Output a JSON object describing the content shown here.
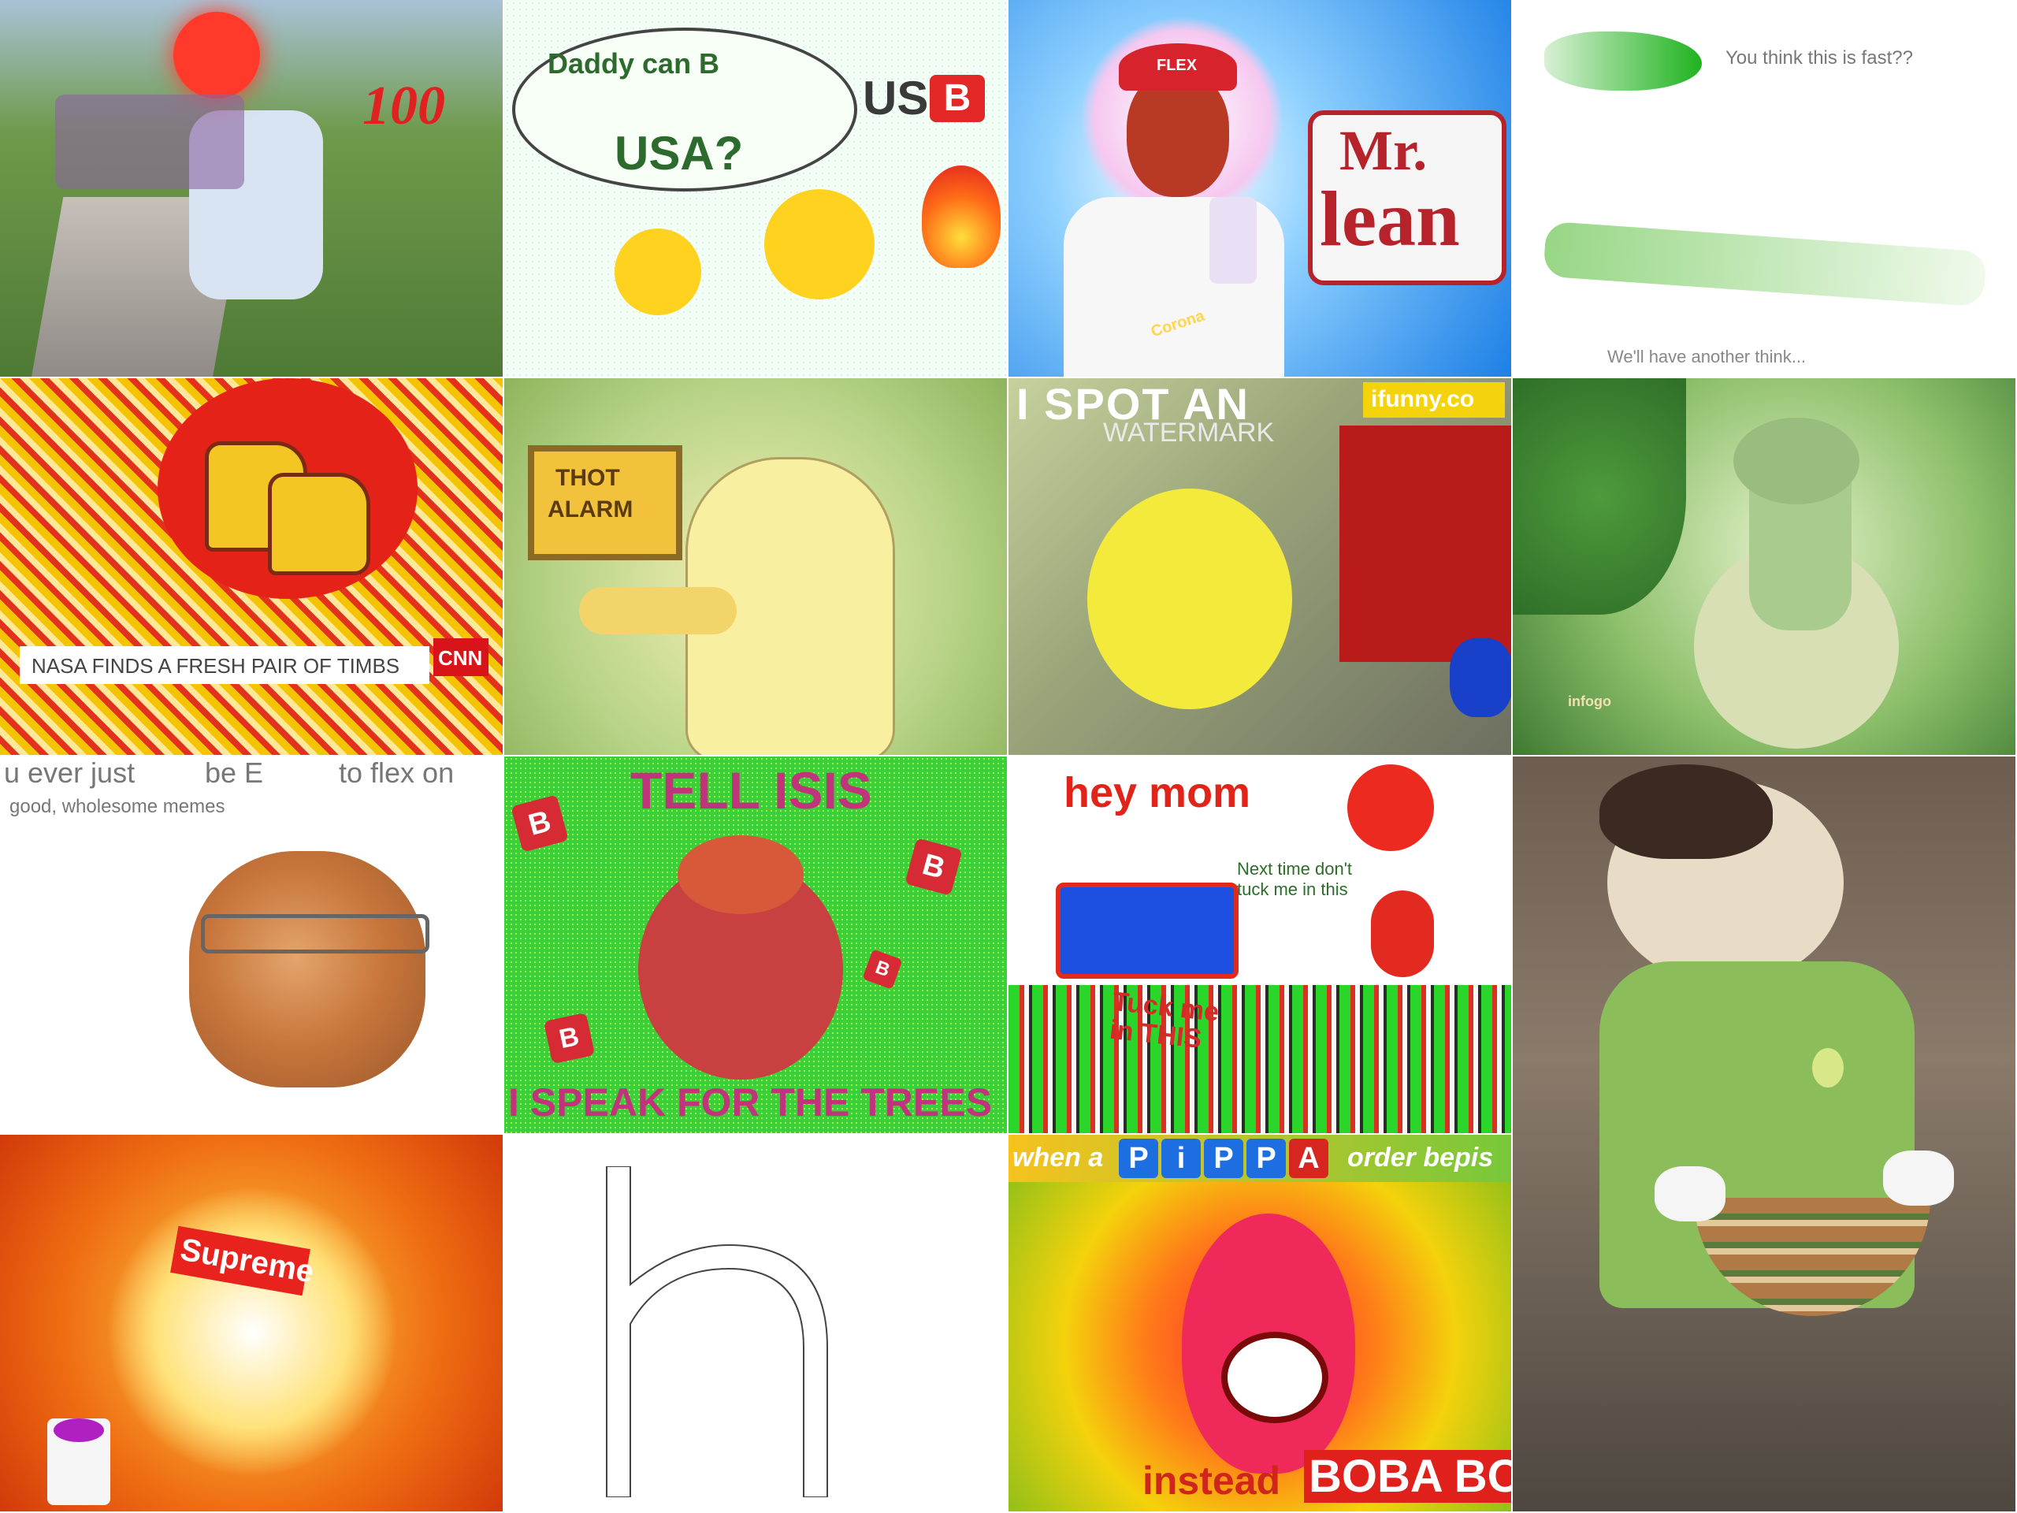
{
  "tiles": {
    "t2": {
      "speech": "Daddy can B ",
      "speech2": "USA?",
      "badge": "B",
      "side": "US"
    },
    "t3": {
      "title1": "Mr.",
      "title2": "lean",
      "cap": "FLEX",
      "can": "Corona"
    },
    "t4": {
      "top": "You think this is fast??",
      "bottom": "We'll have another think..."
    },
    "t5": {
      "ticker": "NASA FINDS A FRESH PAIR OF TIMBS",
      "network": "CNN"
    },
    "t6": {
      "sign1": "THOT",
      "sign2": "ALARM"
    },
    "t7": {
      "header": "I SPOT AN",
      "watermark": "WATERMARK",
      "logo": "ifunny.co"
    },
    "t8": {
      "logo": "infogo"
    },
    "t9": {
      "line1a": "u ever just",
      "line1b": "be E",
      "line1c": "to flex on",
      "line2": "good, wholesome memes"
    },
    "t10": {
      "top": "TELL ISIS",
      "bottom": "I SPEAK FOR THE TREES",
      "b1": "B",
      "b2": "B",
      "b3": "B",
      "b4": "B"
    },
    "t11": {
      "title": "hey mom",
      "note": "Next time don't tuck me in this",
      "bottom": "Tuck me in THIS"
    },
    "t13": {
      "brand": "Supreme"
    },
    "t14": {
      "letter": "h"
    },
    "t15": {
      "top_a": "when a",
      "top_b": "order bepis",
      "letters": [
        "P",
        "i",
        "P",
        "P",
        "A"
      ],
      "bottom_a": "instead",
      "bottom_b": "BOBA BOLA"
    }
  },
  "colors": {
    "red": "#e8221c",
    "white": "#ffffff",
    "blue": "#1a58d9",
    "green": "#3ccf3c"
  }
}
